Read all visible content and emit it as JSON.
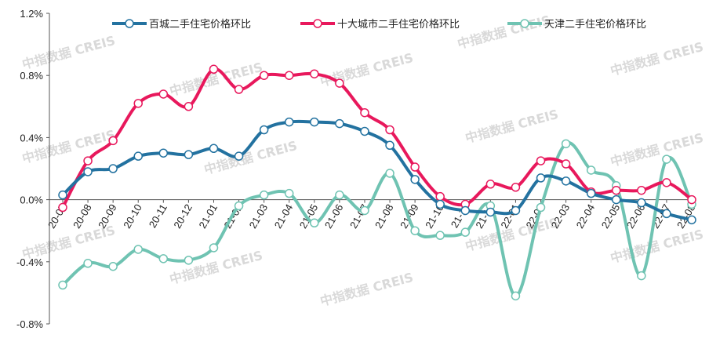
{
  "chart_data": {
    "type": "line",
    "categories": [
      "20-07",
      "20-08",
      "20-09",
      "20-10",
      "20-11",
      "20-12",
      "21-01",
      "21-02",
      "21-03",
      "21-04",
      "21-05",
      "21-06",
      "21-07",
      "21-08",
      "21-09",
      "21-10",
      "21-11",
      "21-12",
      "22-01",
      "22-02",
      "22-03",
      "22-04",
      "22-05",
      "22-06",
      "22-07",
      "22-08"
    ],
    "ylim": [
      -0.8,
      1.2
    ],
    "yticks": [
      -0.8,
      -0.4,
      0.0,
      0.4,
      0.8,
      1.2
    ],
    "ytick_labels": [
      "-0.8%",
      "-0.4%",
      "0.0%",
      "0.4%",
      "0.8%",
      "1.2%"
    ],
    "series": [
      {
        "name": "百城二手住宅价格环比",
        "color": "#2372a0",
        "values": [
          0.03,
          0.18,
          0.2,
          0.28,
          0.3,
          0.29,
          0.33,
          0.28,
          0.45,
          0.5,
          0.5,
          0.49,
          0.44,
          0.35,
          0.13,
          -0.03,
          -0.07,
          -0.08,
          -0.07,
          0.14,
          0.12,
          0.04,
          0.0,
          -0.02,
          -0.09,
          -0.13
        ]
      },
      {
        "name": "十大城市二手住宅价格环比",
        "color": "#e8185c",
        "values": [
          -0.05,
          0.25,
          0.38,
          0.62,
          0.68,
          0.6,
          0.84,
          0.71,
          0.8,
          0.8,
          0.81,
          0.75,
          0.56,
          0.45,
          0.21,
          0.02,
          -0.03,
          0.1,
          0.08,
          0.25,
          0.23,
          0.05,
          0.06,
          0.06,
          0.11,
          0.0
        ]
      },
      {
        "name": "天津二手住宅价格环比",
        "color": "#6fc3b2",
        "values": [
          -0.55,
          -0.41,
          -0.43,
          -0.32,
          -0.38,
          -0.39,
          -0.31,
          -0.04,
          0.03,
          0.04,
          -0.15,
          0.03,
          -0.07,
          0.17,
          -0.2,
          -0.23,
          -0.21,
          -0.04,
          -0.62,
          -0.05,
          0.36,
          0.19,
          0.09,
          -0.49,
          0.26,
          -0.03
        ]
      }
    ],
    "legend_position": "top",
    "grid": false,
    "watermark_text": "中指数据 CREIS"
  }
}
